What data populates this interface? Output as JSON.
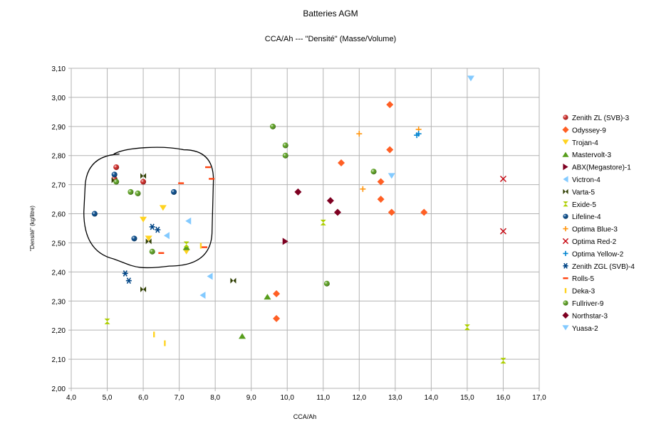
{
  "chart_data": {
    "type": "scatter",
    "title": "Batteries AGM",
    "subtitle": "CCA/Ah --- \"Densité\" (Masse/Volume)",
    "xlabel": "CCA/Ah",
    "ylabel": "\"Densité\" (kg/litre)",
    "xlim": [
      4.0,
      17.0
    ],
    "ylim": [
      2.0,
      3.1
    ],
    "x_ticks": [
      "4,0",
      "5,0",
      "6,0",
      "7,0",
      "8,0",
      "9,0",
      "10,0",
      "11,0",
      "12,0",
      "13,0",
      "14,0",
      "15,0",
      "16,0",
      "17,0"
    ],
    "y_ticks": [
      "2,00",
      "2,10",
      "2,20",
      "2,30",
      "2,40",
      "2,50",
      "2,60",
      "2,70",
      "2,80",
      "2,90",
      "3,00",
      "3,10"
    ],
    "grid": true,
    "legend_position": "right",
    "annotation": "hand-drawn ellipse around cluster x≈4.3–7.9, y≈2.43–2.82",
    "series": [
      {
        "name": "Zenith ZL (SVB)-3",
        "color": "#c9211e",
        "marker": "sphere",
        "points": [
          [
            5.25,
            2.76
          ],
          [
            5.2,
            2.72
          ],
          [
            6.0,
            2.71
          ]
        ]
      },
      {
        "name": "Odyssey-9",
        "color": "#ff5f24",
        "marker": "diamond",
        "points": [
          [
            12.85,
            2.975
          ],
          [
            12.85,
            2.82
          ],
          [
            11.5,
            2.775
          ],
          [
            12.6,
            2.71
          ],
          [
            12.6,
            2.65
          ],
          [
            12.9,
            2.605
          ],
          [
            13.8,
            2.605
          ],
          [
            9.7,
            2.325
          ],
          [
            9.7,
            2.24
          ]
        ]
      },
      {
        "name": "Trojan-4",
        "color": "#ffd320",
        "marker": "triangle-down",
        "points": [
          [
            6.0,
            2.58
          ],
          [
            6.55,
            2.62
          ],
          [
            6.15,
            2.515
          ],
          [
            7.2,
            2.47
          ]
        ]
      },
      {
        "name": "Mastervolt-3",
        "color": "#579d1c",
        "marker": "triangle-up",
        "points": [
          [
            7.2,
            2.485
          ],
          [
            9.45,
            2.315
          ],
          [
            8.75,
            2.18
          ]
        ]
      },
      {
        "name": "ABX(Megastore)-1",
        "color": "#7e0021",
        "marker": "triangle-right",
        "points": [
          [
            9.95,
            2.505
          ]
        ]
      },
      {
        "name": "Victron-4",
        "color": "#83caff",
        "marker": "triangle-left",
        "points": [
          [
            7.25,
            2.575
          ],
          [
            6.65,
            2.525
          ],
          [
            7.85,
            2.385
          ],
          [
            7.65,
            2.32
          ]
        ]
      },
      {
        "name": "Varta-5",
        "color": "#314004",
        "marker": "bowtie",
        "points": [
          [
            5.2,
            2.715
          ],
          [
            6.0,
            2.73
          ],
          [
            6.15,
            2.505
          ],
          [
            6.0,
            2.34
          ],
          [
            8.5,
            2.37
          ]
        ]
      },
      {
        "name": "Exide-5",
        "color": "#aecf00",
        "marker": "hourglass",
        "points": [
          [
            7.2,
            2.495
          ],
          [
            11.0,
            2.57
          ],
          [
            5.0,
            2.23
          ],
          [
            15.0,
            2.21
          ],
          [
            16.0,
            2.095
          ]
        ]
      },
      {
        "name": "Lifeline-4",
        "color": "#004586",
        "marker": "sphere",
        "points": [
          [
            5.2,
            2.735
          ],
          [
            6.85,
            2.675
          ],
          [
            4.65,
            2.6
          ],
          [
            5.75,
            2.515
          ]
        ]
      },
      {
        "name": "Optima Blue-3",
        "color": "#ff950e",
        "marker": "plus",
        "points": [
          [
            12.0,
            2.875
          ],
          [
            13.65,
            2.89
          ],
          [
            12.1,
            2.685
          ]
        ]
      },
      {
        "name": "Optima Red-2",
        "color": "#c5000b",
        "marker": "cross",
        "points": [
          [
            16.0,
            2.72
          ],
          [
            16.0,
            2.54
          ]
        ]
      },
      {
        "name": "Optima Yellow-2",
        "color": "#0084d1",
        "marker": "plus",
        "points": [
          [
            13.65,
            2.875
          ],
          [
            13.6,
            2.87
          ]
        ]
      },
      {
        "name": "Zenith ZGL (SVB)-4",
        "color": "#004586",
        "marker": "asterisk",
        "points": [
          [
            6.25,
            2.555
          ],
          [
            6.4,
            2.545
          ],
          [
            5.5,
            2.395
          ],
          [
            5.6,
            2.37
          ]
        ]
      },
      {
        "name": "Rolls-5",
        "color": "#ff420e",
        "marker": "dash",
        "points": [
          [
            7.8,
            2.76
          ],
          [
            7.05,
            2.705
          ],
          [
            7.9,
            2.72
          ],
          [
            7.7,
            2.485
          ],
          [
            6.5,
            2.465
          ]
        ]
      },
      {
        "name": "Deka-3",
        "color": "#ffd320",
        "marker": "bar",
        "points": [
          [
            7.6,
            2.49
          ],
          [
            6.3,
            2.185
          ],
          [
            6.6,
            2.155
          ]
        ]
      },
      {
        "name": "Fullriver-9",
        "color": "#579d1c",
        "marker": "sphere",
        "points": [
          [
            5.25,
            2.71
          ],
          [
            5.65,
            2.675
          ],
          [
            5.85,
            2.67
          ],
          [
            6.25,
            2.47
          ],
          [
            9.6,
            2.9
          ],
          [
            9.95,
            2.835
          ],
          [
            9.95,
            2.8
          ],
          [
            12.4,
            2.745
          ],
          [
            11.1,
            2.36
          ]
        ]
      },
      {
        "name": "Northstar-3",
        "color": "#7e0021",
        "marker": "diamond",
        "points": [
          [
            10.3,
            2.675
          ],
          [
            11.2,
            2.645
          ],
          [
            11.4,
            2.605
          ]
        ]
      },
      {
        "name": "Yuasa-2",
        "color": "#83caff",
        "marker": "triangle-down",
        "points": [
          [
            15.1,
            3.065
          ],
          [
            12.9,
            2.73
          ]
        ]
      }
    ]
  }
}
